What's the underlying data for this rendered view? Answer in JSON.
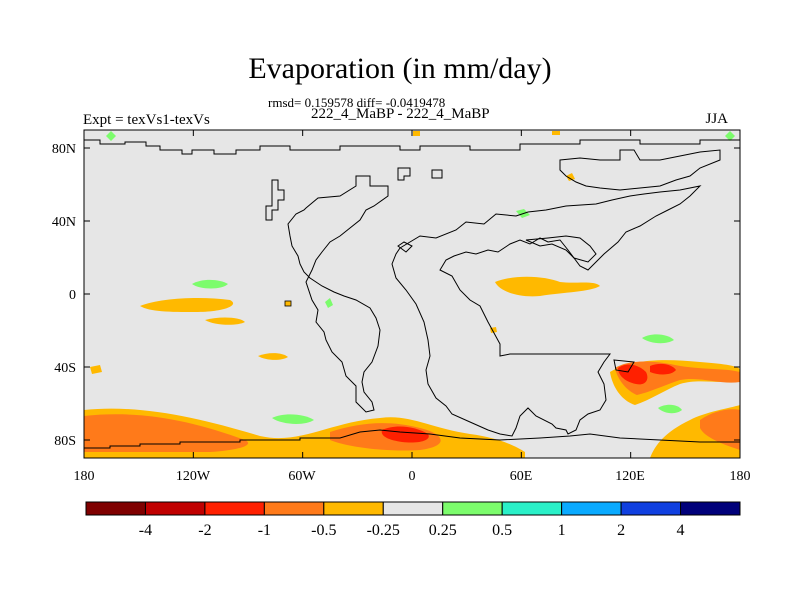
{
  "title": "Evaporation (in mm/day)",
  "stats": "rmsd= 0.159578 diff= -0.0419478",
  "subtitle": "222_4_MaBP - 222_4_MaBP",
  "experiment": "Expt = texVs1-texVs",
  "season": "JJA",
  "map": {
    "lat_ticks": [
      "80N",
      "40N",
      "0",
      "40S",
      "80S"
    ],
    "lon_ticks": [
      "180",
      "120W",
      "60W",
      "0",
      "60E",
      "120E",
      "180"
    ],
    "background_color": "#e6e6e6"
  },
  "colorbar": {
    "labels": [
      "-4",
      "-2",
      "-1",
      "-0.5",
      "-0.25",
      "0.25",
      "0.5",
      "1",
      "2",
      "4"
    ],
    "colors": [
      "#7f0000",
      "#c00000",
      "#ff2000",
      "#ff7a1a",
      "#ffb900",
      "#e6e6e6",
      "#7cfc6c",
      "#2af0c8",
      "#0aaaff",
      "#1040e0",
      "#00007a"
    ]
  }
}
